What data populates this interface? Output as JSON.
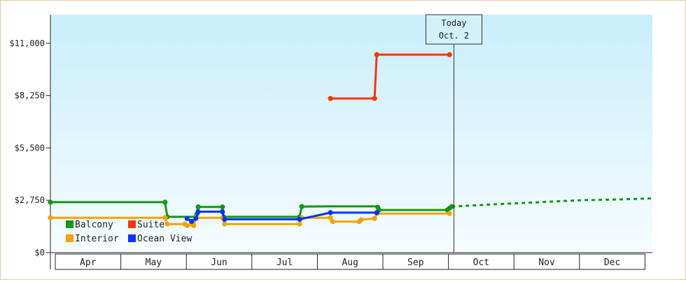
{
  "chart_data": {
    "type": "line",
    "title": "",
    "xlabel": "",
    "ylabel": "",
    "ylim": [
      0,
      12500
    ],
    "grid": false,
    "legend_position": "bottom-left",
    "y_ticks": [
      "$0",
      "$2,750",
      "$5,500",
      "$8,250",
      "$11,000"
    ],
    "y_tick_values": [
      0,
      2750,
      5500,
      8250,
      11000
    ],
    "months": [
      "Apr",
      "May",
      "Jun",
      "Jul",
      "Aug",
      "Sep",
      "Oct",
      "Nov",
      "Dec"
    ],
    "x_range_days": [
      0,
      273
    ],
    "today": {
      "line1": "Today",
      "line2": "Oct. 2",
      "day": 183
    },
    "colors": {
      "background_top": "#c9eefb",
      "background_bottom": "#f6fcff",
      "Balcony": "#119911",
      "Suite": "#ff3300",
      "Interior": "#f5a200",
      "Ocean View": "#0033ff"
    },
    "series": [
      {
        "name": "Balcony",
        "points": [
          [
            0,
            2650
          ],
          [
            52,
            2650
          ],
          [
            53,
            1880
          ],
          [
            66,
            1880
          ],
          [
            66.5,
            2040
          ],
          [
            67,
            2400
          ],
          [
            78,
            2400
          ],
          [
            78.5,
            1880
          ],
          [
            113,
            1880
          ],
          [
            114,
            2420
          ],
          [
            127,
            2430
          ],
          [
            148,
            2430
          ],
          [
            148.5,
            2380
          ],
          [
            149,
            2240
          ],
          [
            180,
            2240
          ],
          [
            181,
            2330
          ],
          [
            182,
            2420
          ]
        ],
        "projection": [
          [
            182,
            2420
          ],
          [
            200,
            2530
          ],
          [
            220,
            2640
          ],
          [
            240,
            2750
          ],
          [
            260,
            2800
          ],
          [
            273,
            2850
          ]
        ]
      },
      {
        "name": "Suite",
        "points": [
          [
            127,
            8100
          ],
          [
            147,
            8100
          ],
          [
            148,
            10400
          ],
          [
            181,
            10400
          ]
        ]
      },
      {
        "name": "Interior",
        "points": [
          [
            0,
            1830
          ],
          [
            52,
            1830
          ],
          [
            53,
            1500
          ],
          [
            61,
            1500
          ],
          [
            62,
            1420
          ],
          [
            63,
            1450
          ],
          [
            64,
            1500
          ],
          [
            65,
            1420
          ],
          [
            66,
            1830
          ],
          [
            78,
            1830
          ],
          [
            79,
            1500
          ],
          [
            113,
            1500
          ],
          [
            114,
            1830
          ],
          [
            127,
            1830
          ],
          [
            128,
            1630
          ],
          [
            140,
            1630
          ],
          [
            141,
            1730
          ],
          [
            147,
            1790
          ],
          [
            148,
            2050
          ],
          [
            181,
            2050
          ]
        ]
      },
      {
        "name": "Ocean View",
        "points": [
          [
            62,
            1790
          ],
          [
            64,
            1640
          ],
          [
            66,
            1800
          ],
          [
            67,
            2150
          ],
          [
            78,
            2150
          ],
          [
            79,
            1750
          ],
          [
            113,
            1750
          ],
          [
            127,
            2100
          ],
          [
            148,
            2100
          ]
        ]
      }
    ]
  }
}
